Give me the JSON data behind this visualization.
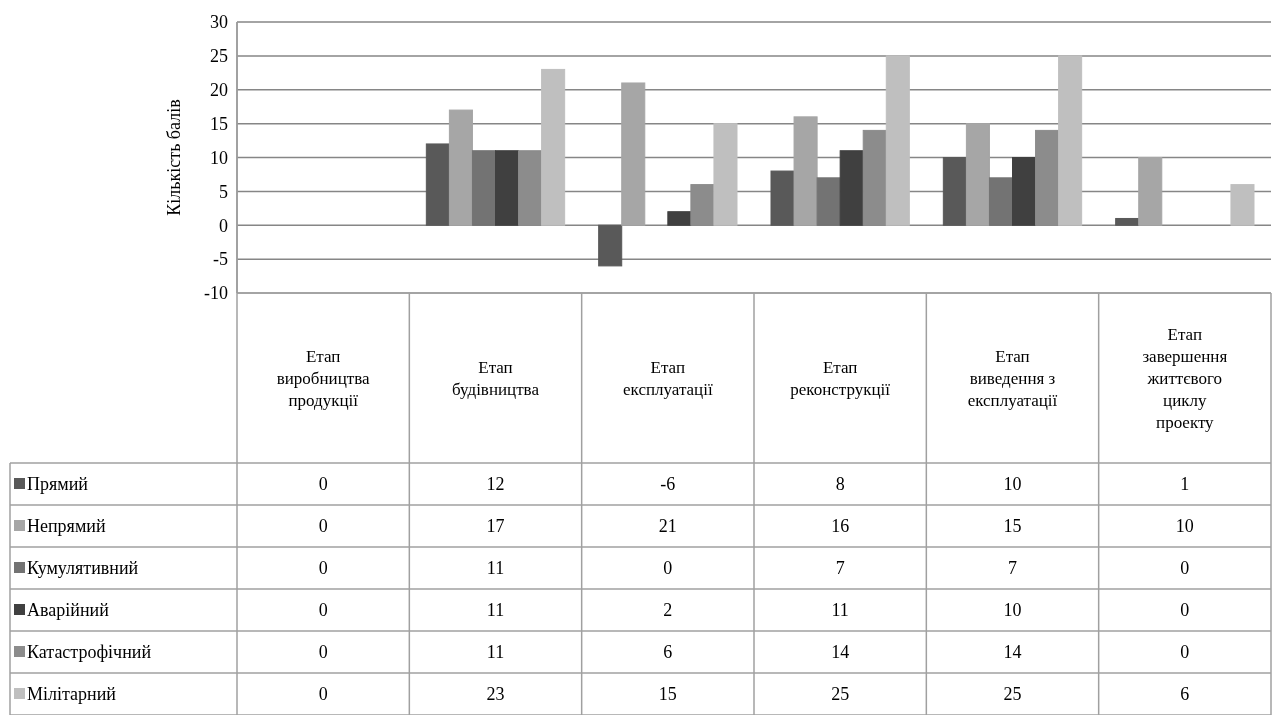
{
  "chart_data": {
    "type": "bar",
    "ylabel": "Кількість балів",
    "categories": [
      "Етап виробництва продукції",
      "Етап будівництва",
      "Етап експлуатації",
      "Етап реконструкції",
      "Етап виведення з експлуатації",
      "Етап завершення життєвого циклу проекту"
    ],
    "series": [
      {
        "name": "Прямий",
        "color": "#595959",
        "values": [
          0,
          12,
          -6,
          8,
          10,
          1
        ]
      },
      {
        "name": "Непрямий",
        "color": "#a6a6a6",
        "values": [
          0,
          17,
          21,
          16,
          15,
          10
        ]
      },
      {
        "name": "Кумулятивний",
        "color": "#737373",
        "values": [
          0,
          11,
          0,
          7,
          7,
          0
        ]
      },
      {
        "name": "Аварійний",
        "color": "#404040",
        "values": [
          0,
          11,
          2,
          11,
          10,
          0
        ]
      },
      {
        "name": "Катастрофічний",
        "color": "#8c8c8c",
        "values": [
          0,
          11,
          6,
          14,
          14,
          0
        ]
      },
      {
        "name": "Мілітарний",
        "color": "#bfbfbf",
        "values": [
          0,
          23,
          15,
          25,
          25,
          6
        ]
      }
    ],
    "ylim": [
      -10,
      30
    ],
    "yticks": [
      -10,
      -5,
      0,
      5,
      10,
      15,
      20,
      25,
      30
    ],
    "grid": "y",
    "legend": "bottom",
    "data_labels": true
  }
}
